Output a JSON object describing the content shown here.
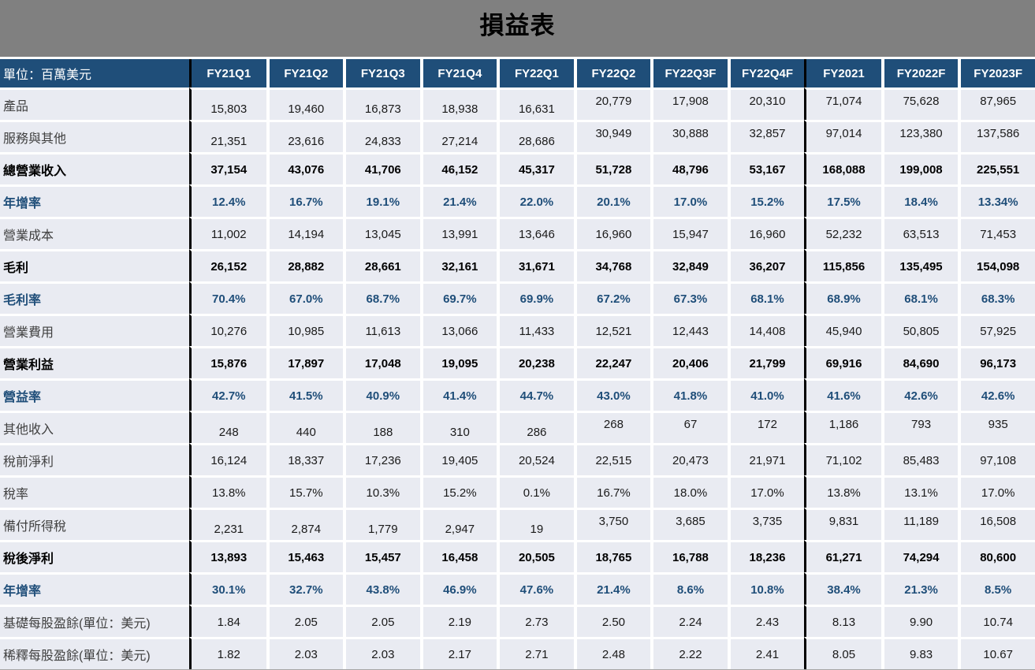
{
  "title": "損益表",
  "colors": {
    "title_band_bg": "#808080",
    "header_bg": "#1F4E79",
    "cell_bg": "#E9EBF2",
    "accent_blue": "#1F4E79",
    "divider_black": "#000000"
  },
  "table": {
    "unit_label": "單位：百萬美元",
    "columns": [
      "FY21Q1",
      "FY21Q2",
      "FY21Q3",
      "FY21Q4",
      "FY22Q1",
      "FY22Q2",
      "FY22Q3F",
      "FY22Q4F",
      "FY2021",
      "FY2022F",
      "FY2023F"
    ],
    "divider_after_column_indexes": [
      0,
      8
    ],
    "rows": [
      {
        "label": "產品",
        "style": "regular",
        "valign": "split",
        "values": [
          "15,803",
          "19,460",
          "16,873",
          "18,938",
          "16,631",
          "20,779",
          "17,908",
          "20,310",
          "71,074",
          "75,628",
          "87,965"
        ]
      },
      {
        "label": "服務與其他",
        "style": "regular",
        "valign": "split",
        "values": [
          "21,351",
          "23,616",
          "24,833",
          "27,214",
          "28,686",
          "30,949",
          "30,888",
          "32,857",
          "97,014",
          "123,380",
          "137,586"
        ]
      },
      {
        "label": "總營業收入",
        "style": "bold",
        "valign": "middle",
        "values": [
          "37,154",
          "43,076",
          "41,706",
          "46,152",
          "45,317",
          "51,728",
          "48,796",
          "53,167",
          "168,088",
          "199,008",
          "225,551"
        ]
      },
      {
        "label": "年增率",
        "style": "percent",
        "valign": "middle",
        "values": [
          "12.4%",
          "16.7%",
          "19.1%",
          "21.4%",
          "22.0%",
          "20.1%",
          "17.0%",
          "15.2%",
          "17.5%",
          "18.4%",
          "13.34%"
        ]
      },
      {
        "label": "營業成本",
        "style": "regular",
        "valign": "middle",
        "values": [
          "11,002",
          "14,194",
          "13,045",
          "13,991",
          "13,646",
          "16,960",
          "15,947",
          "16,960",
          "52,232",
          "63,513",
          "71,453"
        ]
      },
      {
        "label": "毛利",
        "style": "bold",
        "valign": "middle",
        "values": [
          "26,152",
          "28,882",
          "28,661",
          "32,161",
          "31,671",
          "34,768",
          "32,849",
          "36,207",
          "115,856",
          "135,495",
          "154,098"
        ]
      },
      {
        "label": "毛利率",
        "style": "percent",
        "valign": "middle",
        "values": [
          "70.4%",
          "67.0%",
          "68.7%",
          "69.7%",
          "69.9%",
          "67.2%",
          "67.3%",
          "68.1%",
          "68.9%",
          "68.1%",
          "68.3%"
        ]
      },
      {
        "label": "營業費用",
        "style": "regular",
        "valign": "middle",
        "values": [
          "10,276",
          "10,985",
          "11,613",
          "13,066",
          "11,433",
          "12,521",
          "12,443",
          "14,408",
          "45,940",
          "50,805",
          "57,925"
        ]
      },
      {
        "label": "營業利益",
        "style": "bold",
        "valign": "middle",
        "values": [
          "15,876",
          "17,897",
          "17,048",
          "19,095",
          "20,238",
          "22,247",
          "20,406",
          "21,799",
          "69,916",
          "84,690",
          "96,173"
        ]
      },
      {
        "label": "營益率",
        "style": "percent",
        "valign": "middle",
        "values": [
          "42.7%",
          "41.5%",
          "40.9%",
          "41.4%",
          "44.7%",
          "43.0%",
          "41.8%",
          "41.0%",
          "41.6%",
          "42.6%",
          "42.6%"
        ]
      },
      {
        "label": "其他收入",
        "style": "regular",
        "valign": "split",
        "values": [
          "248",
          "440",
          "188",
          "310",
          "286",
          "268",
          "67",
          "172",
          "1,186",
          "793",
          "935"
        ]
      },
      {
        "label": "稅前淨利",
        "style": "regular",
        "valign": "middle",
        "values": [
          "16,124",
          "18,337",
          "17,236",
          "19,405",
          "20,524",
          "22,515",
          "20,473",
          "21,971",
          "71,102",
          "85,483",
          "97,108"
        ]
      },
      {
        "label": "稅率",
        "style": "regular",
        "valign": "middle",
        "values": [
          "13.8%",
          "15.7%",
          "10.3%",
          "15.2%",
          "0.1%",
          "16.7%",
          "18.0%",
          "17.0%",
          "13.8%",
          "13.1%",
          "17.0%"
        ]
      },
      {
        "label": "備付所得稅",
        "style": "regular",
        "valign": "split",
        "values": [
          "2,231",
          "2,874",
          "1,779",
          "2,947",
          "19",
          "3,750",
          "3,685",
          "3,735",
          "9,831",
          "11,189",
          "16,508"
        ]
      },
      {
        "label": "稅後淨利",
        "style": "bold",
        "valign": "middle",
        "values": [
          "13,893",
          "15,463",
          "15,457",
          "16,458",
          "20,505",
          "18,765",
          "16,788",
          "18,236",
          "61,271",
          "74,294",
          "80,600"
        ]
      },
      {
        "label": "年增率",
        "style": "percent",
        "valign": "middle",
        "values": [
          "30.1%",
          "32.7%",
          "43.8%",
          "46.9%",
          "47.6%",
          "21.4%",
          "8.6%",
          "10.8%",
          "38.4%",
          "21.3%",
          "8.5%"
        ]
      },
      {
        "label": "基礎每股盈餘(單位：美元)",
        "style": "regular",
        "valign": "middle",
        "values": [
          "1.84",
          "2.05",
          "2.05",
          "2.19",
          "2.73",
          "2.50",
          "2.24",
          "2.43",
          "8.13",
          "9.90",
          "10.74"
        ]
      },
      {
        "label": "稀釋每股盈餘(單位：美元)",
        "style": "regular",
        "valign": "middle",
        "values": [
          "1.82",
          "2.03",
          "2.03",
          "2.17",
          "2.71",
          "2.48",
          "2.22",
          "2.41",
          "8.05",
          "9.83",
          "10.67"
        ]
      }
    ]
  }
}
